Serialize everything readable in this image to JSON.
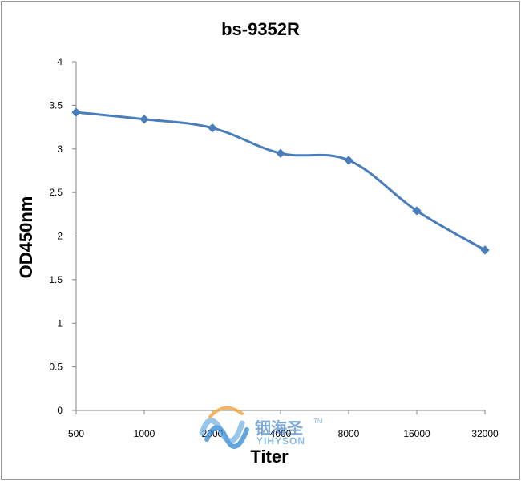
{
  "chart_data": {
    "type": "line",
    "title": "bs-9352R",
    "xlabel": "Titer",
    "ylabel": "OD450nm",
    "categories": [
      "500",
      "1000",
      "2000",
      "4000",
      "8000",
      "16000",
      "32000"
    ],
    "series": [
      {
        "values": [
          3.42,
          3.34,
          3.24,
          2.95,
          2.87,
          2.29,
          1.84
        ]
      }
    ],
    "ylim": [
      0,
      4
    ],
    "yticks": [
      "0",
      "0.5",
      "1",
      "1.5",
      "2",
      "2.5",
      "3",
      "3.5",
      "4"
    ],
    "grid": false,
    "legend": "none",
    "colors": {
      "line": "#4a7ebb",
      "axis": "#868686"
    }
  },
  "watermark": {
    "name_cn": "铟海圣",
    "name_en": "YIHYSON",
    "tm": "TM"
  }
}
